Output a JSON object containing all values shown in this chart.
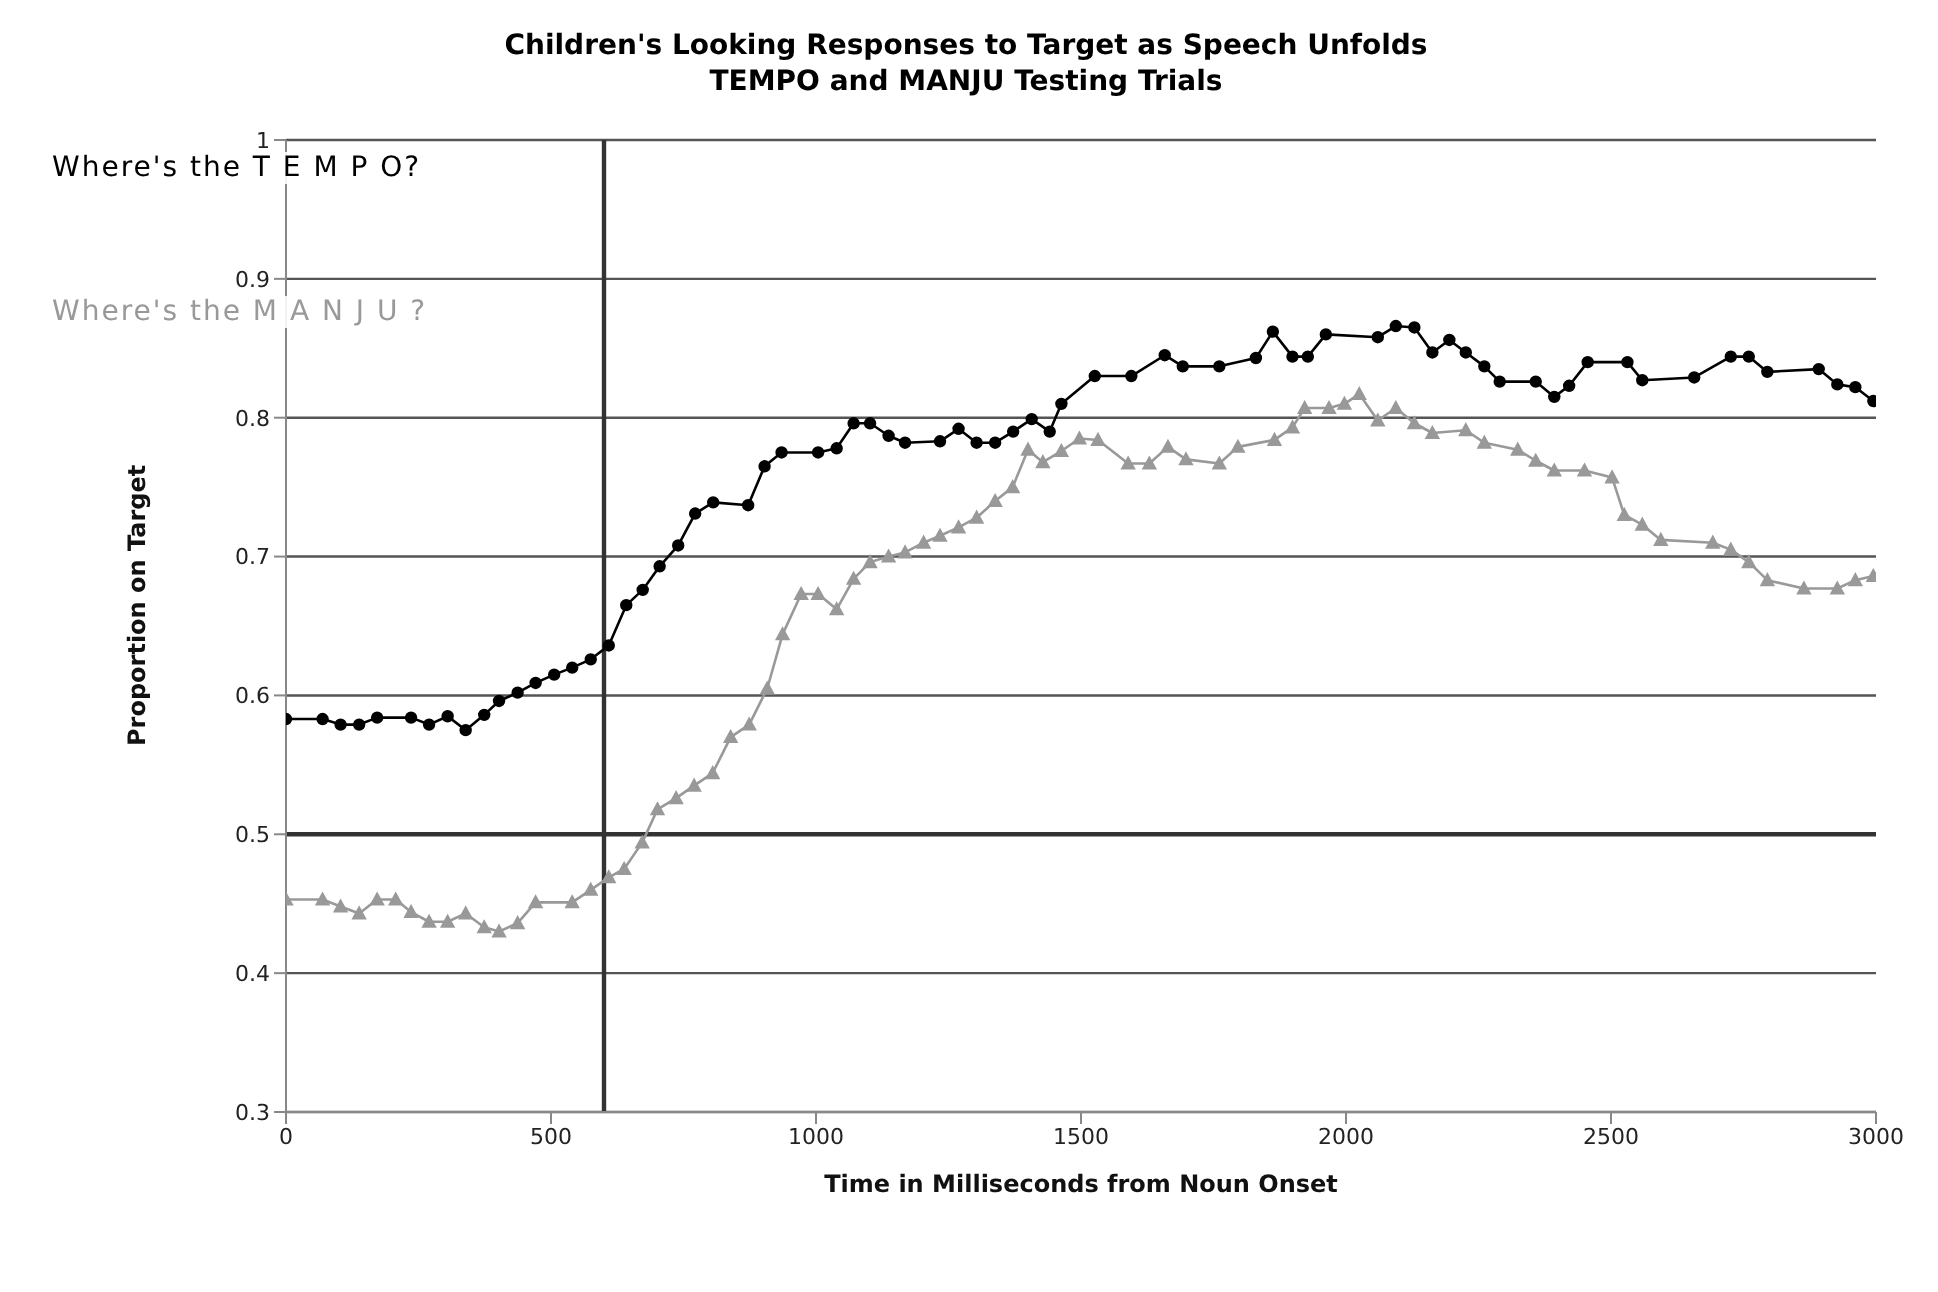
{
  "chart_data": {
    "type": "line",
    "title": "Children's Looking Responses to Target as Speech Unfolds",
    "subtitle": "TEMPO and MANJU Testing Trials",
    "xlabel": "Time in Milliseconds from Noun Onset",
    "ylabel": "Proportion on Target",
    "xlim": [
      0,
      3000
    ],
    "xticks": [
      0,
      500,
      1000,
      1500,
      2000,
      2500,
      3000
    ],
    "ylim": [
      0.3,
      1
    ],
    "yticks": [
      0.3,
      0.4,
      0.5,
      0.6,
      0.7,
      0.8,
      0.9,
      1
    ],
    "grid": "y",
    "legend": false,
    "annotations": [
      "Where's the T E M P O?",
      "Where's the M A N J U ?"
    ],
    "ref_lines": [
      {
        "axis": "x",
        "value": 600,
        "color": "#333333"
      },
      {
        "axis": "y",
        "value": 0.5,
        "color": "#333333"
      }
    ],
    "series": [
      {
        "color": "#000000",
        "marker": "circle",
        "line_style": "solid",
        "x": [
          0,
          69,
          103,
          138,
          172,
          236,
          270,
          305,
          339,
          374,
          402,
          437,
          471,
          506,
          540,
          575,
          609,
          642,
          673,
          705,
          740,
          772,
          806,
          872,
          903,
          935,
          1004,
          1039,
          1071,
          1102,
          1137,
          1168,
          1234,
          1269,
          1303,
          1338,
          1372,
          1407,
          1441,
          1463,
          1526,
          1595,
          1658,
          1692,
          1761,
          1830,
          1862,
          1899,
          1928,
          1962,
          2060,
          2094,
          2129,
          2163,
          2195,
          2226,
          2261,
          2290,
          2358,
          2393,
          2421,
          2456,
          2531,
          2559,
          2657,
          2726,
          2760,
          2795,
          2892,
          2927,
          2961,
          2995
        ],
        "values": [
          0.583,
          0.583,
          0.579,
          0.579,
          0.584,
          0.584,
          0.579,
          0.585,
          0.575,
          0.586,
          0.596,
          0.602,
          0.609,
          0.615,
          0.62,
          0.626,
          0.636,
          0.665,
          0.676,
          0.693,
          0.708,
          0.731,
          0.739,
          0.737,
          0.765,
          0.775,
          0.775,
          0.778,
          0.796,
          0.796,
          0.787,
          0.782,
          0.783,
          0.792,
          0.782,
          0.782,
          0.79,
          0.799,
          0.79,
          0.81,
          0.83,
          0.83,
          0.845,
          0.837,
          0.837,
          0.843,
          0.862,
          0.844,
          0.844,
          0.86,
          0.858,
          0.866,
          0.865,
          0.847,
          0.856,
          0.847,
          0.837,
          0.826,
          0.826,
          0.815,
          0.823,
          0.84,
          0.84,
          0.827,
          0.829,
          0.844,
          0.844,
          0.833,
          0.835,
          0.824,
          0.822,
          0.812
        ]
      },
      {
        "color": "#999999",
        "marker": "triangle",
        "line_style": "solid",
        "x": [
          0,
          69,
          103,
          138,
          172,
          207,
          236,
          270,
          305,
          339,
          374,
          402,
          437,
          471,
          540,
          575,
          609,
          638,
          672,
          701,
          736,
          770,
          805,
          839,
          874,
          908,
          937,
          972,
          1004,
          1039,
          1071,
          1102,
          1137,
          1168,
          1203,
          1234,
          1269,
          1303,
          1338,
          1371,
          1400,
          1428,
          1463,
          1497,
          1532,
          1589,
          1629,
          1664,
          1698,
          1761,
          1796,
          1865,
          1899,
          1922,
          1968,
          1997,
          2025,
          2060,
          2094,
          2129,
          2163,
          2226,
          2261,
          2324,
          2358,
          2393,
          2450,
          2502,
          2525,
          2559,
          2594,
          2692,
          2726,
          2760,
          2795,
          2864,
          2927,
          2961,
          2995
        ],
        "values": [
          0.453,
          0.453,
          0.448,
          0.443,
          0.453,
          0.453,
          0.444,
          0.437,
          0.437,
          0.443,
          0.433,
          0.43,
          0.436,
          0.451,
          0.451,
          0.46,
          0.469,
          0.475,
          0.494,
          0.518,
          0.526,
          0.535,
          0.544,
          0.57,
          0.579,
          0.605,
          0.644,
          0.673,
          0.673,
          0.662,
          0.684,
          0.696,
          0.7,
          0.703,
          0.71,
          0.715,
          0.721,
          0.728,
          0.74,
          0.75,
          0.777,
          0.768,
          0.776,
          0.785,
          0.784,
          0.767,
          0.767,
          0.779,
          0.77,
          0.767,
          0.779,
          0.784,
          0.793,
          0.807,
          0.807,
          0.81,
          0.817,
          0.798,
          0.807,
          0.796,
          0.789,
          0.791,
          0.782,
          0.777,
          0.769,
          0.762,
          0.762,
          0.757,
          0.73,
          0.723,
          0.712,
          0.71,
          0.705,
          0.696,
          0.683,
          0.677,
          0.677,
          0.683,
          0.686
        ]
      }
    ]
  }
}
